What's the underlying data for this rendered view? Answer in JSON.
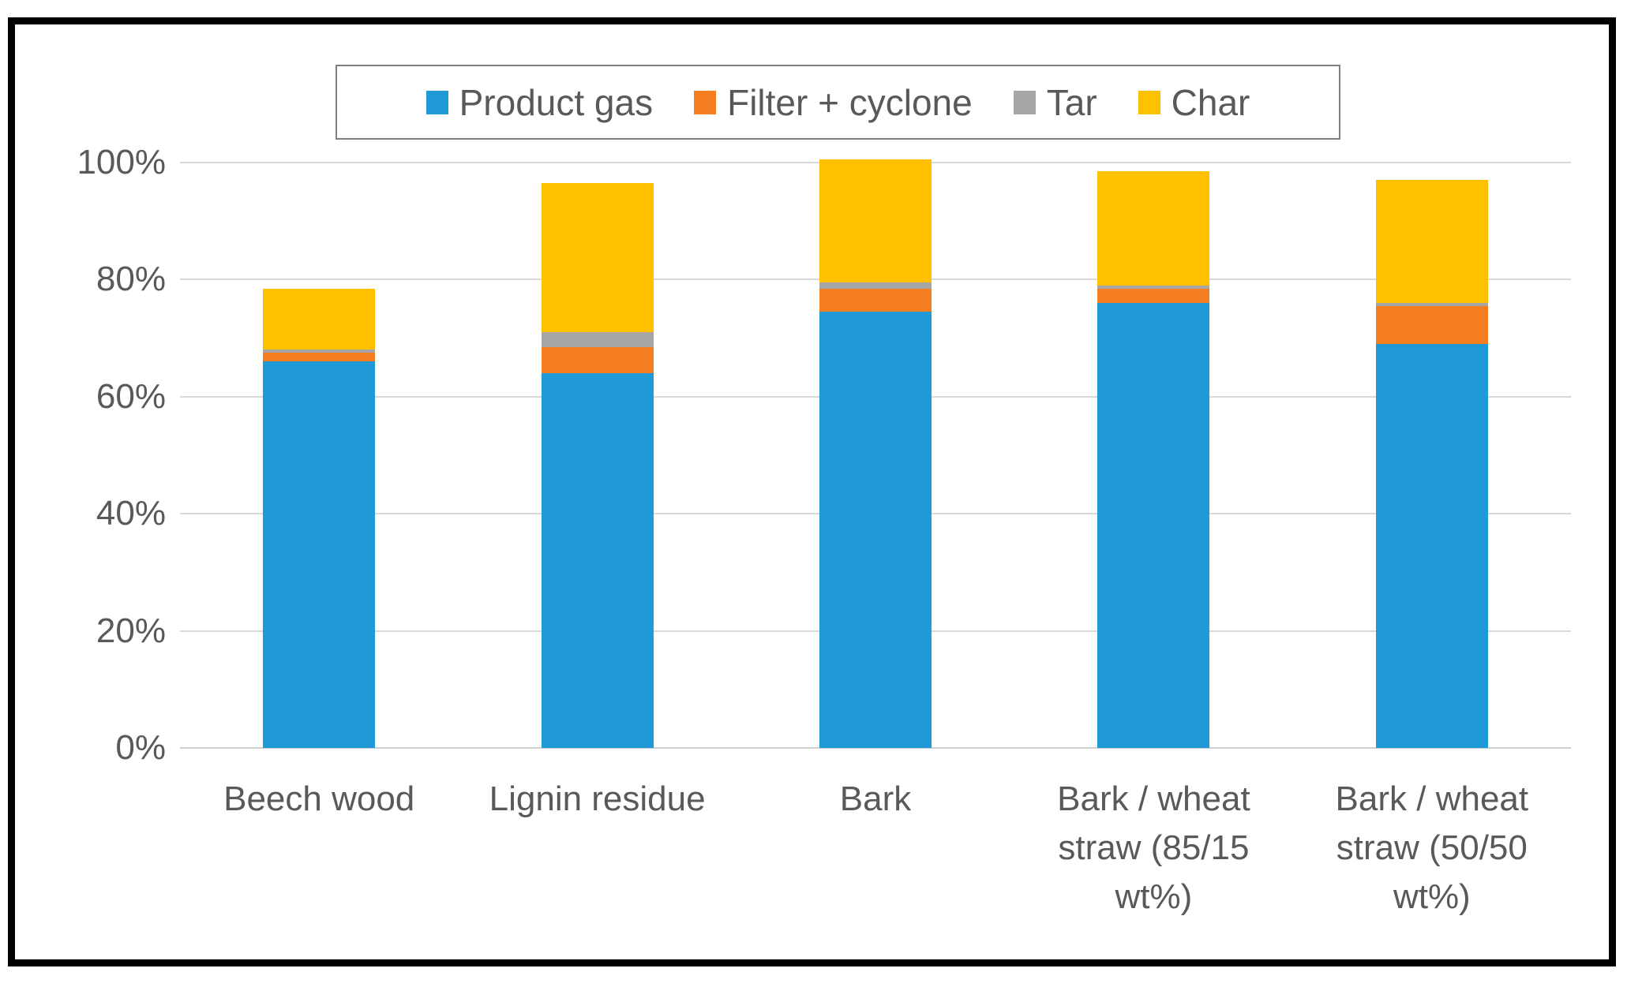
{
  "page": {
    "background_color": "#ffffff",
    "frame_color": "#000000",
    "text_color": "#595959",
    "gridline_color": "#d9d9d9",
    "legend_border_color": "#7f7f7f"
  },
  "chart_data": {
    "type": "bar",
    "subtype": "stacked-column",
    "title": "",
    "xlabel": "",
    "ylabel": "",
    "ylim": [
      0,
      100
    ],
    "grid": true,
    "legend_position": "top",
    "y_tick_labels": [
      "0%",
      "20%",
      "40%",
      "60%",
      "80%",
      "100%"
    ],
    "y_tick_values": [
      0,
      20,
      40,
      60,
      80,
      100
    ],
    "categories": [
      "Beech wood",
      "Lignin residue",
      "Bark",
      "Bark / wheat straw (85/15 wt%)",
      "Bark / wheat straw (50/50 wt%)"
    ],
    "series": [
      {
        "name": "Product gas",
        "color": "#1f9ad7",
        "values": [
          66,
          64,
          74.5,
          76,
          69
        ]
      },
      {
        "name": "Filter + cyclone",
        "color": "#f57e20",
        "values": [
          1.5,
          4.5,
          4,
          2.5,
          6.5
        ]
      },
      {
        "name": "Tar",
        "color": "#a6a6a6",
        "values": [
          0.5,
          2.5,
          1,
          0.5,
          0.5
        ]
      },
      {
        "name": "Char",
        "color": "#ffc000",
        "values": [
          10.5,
          25.5,
          21,
          19.5,
          21
        ]
      }
    ],
    "stack_totals": [
      78.5,
      96.5,
      100.5,
      98.5,
      97
    ]
  }
}
